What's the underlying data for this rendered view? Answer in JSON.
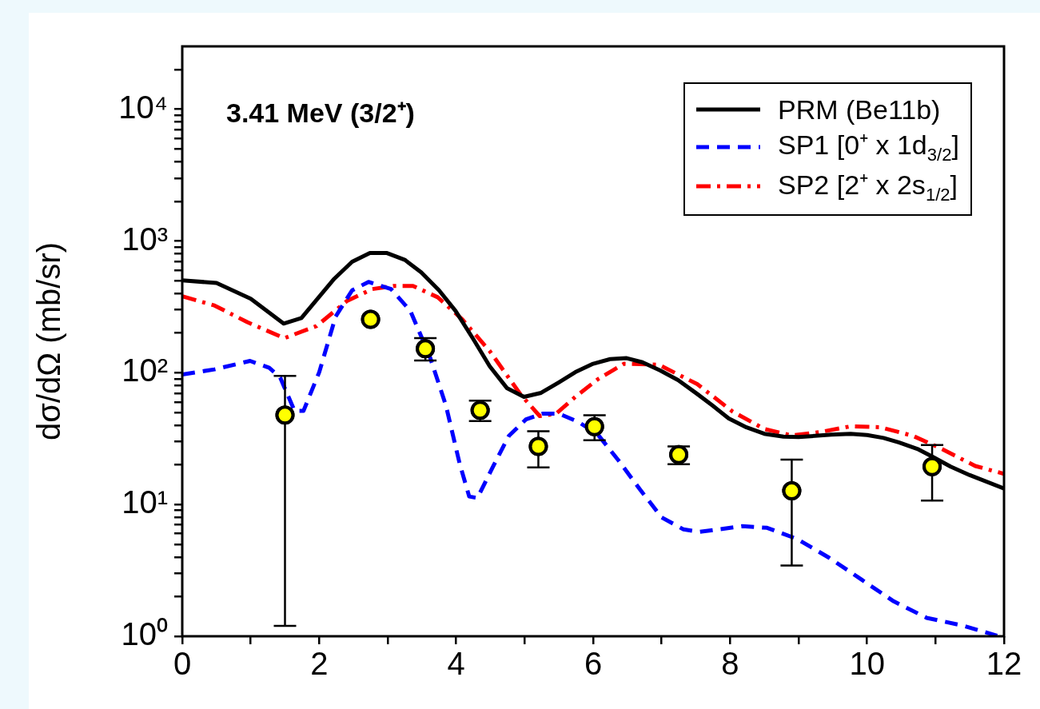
{
  "chart_data": {
    "type": "line",
    "title": "3.41 MeV (3/2⁺)",
    "ylabel": "dσ/dΩ (mb/sr)",
    "log": "y",
    "grid": false,
    "legend": "top right",
    "xlim": [
      0,
      12
    ],
    "xticks": [
      0,
      {
        "value": 1,
        "label": null
      },
      2,
      {
        "value": 3,
        "label": null
      },
      4,
      {
        "value": 5,
        "label": null
      },
      6,
      {
        "value": 7,
        "label": null
      },
      8,
      {
        "value": 9,
        "label": null
      },
      10,
      {
        "value": 11,
        "label": null
      },
      12
    ],
    "ylim": [
      1,
      30000
    ],
    "yticks": [
      {
        "value": 1,
        "label": "10⁰"
      },
      {
        "value": 2,
        "label": null
      },
      {
        "value": 3,
        "label": null
      },
      {
        "value": 4,
        "label": null
      },
      {
        "value": 5,
        "label": null
      },
      {
        "value": 6,
        "label": null
      },
      {
        "value": 7,
        "label": null
      },
      {
        "value": 8,
        "label": null
      },
      {
        "value": 9,
        "label": null
      },
      {
        "value": 10,
        "label": "10¹"
      },
      {
        "value": 20,
        "label": null
      },
      {
        "value": 30,
        "label": null
      },
      {
        "value": 40,
        "label": null
      },
      {
        "value": 50,
        "label": null
      },
      {
        "value": 60,
        "label": null
      },
      {
        "value": 70,
        "label": null
      },
      {
        "value": 80,
        "label": null
      },
      {
        "value": 90,
        "label": null
      },
      {
        "value": 100,
        "label": "10²"
      },
      {
        "value": 200,
        "label": null
      },
      {
        "value": 300,
        "label": null
      },
      {
        "value": 400,
        "label": null
      },
      {
        "value": 500,
        "label": null
      },
      {
        "value": 600,
        "label": null
      },
      {
        "value": 700,
        "label": null
      },
      {
        "value": 800,
        "label": null
      },
      {
        "value": 900,
        "label": null
      },
      {
        "value": 1000,
        "label": "10³"
      },
      {
        "value": 2000,
        "label": null
      },
      {
        "value": 3000,
        "label": null
      },
      {
        "value": 4000,
        "label": null
      },
      {
        "value": 5000,
        "label": null
      },
      {
        "value": 6000,
        "label": null
      },
      {
        "value": 7000,
        "label": null
      },
      {
        "value": 8000,
        "label": null
      },
      {
        "value": 9000,
        "label": null
      },
      {
        "value": 10000,
        "label": "10⁴"
      },
      {
        "value": 20000,
        "label": null
      }
    ],
    "series": [
      {
        "name": "PRM (Be11b)",
        "color": "#000000",
        "line_style": "solid",
        "x": [
          0,
          0.5,
          1.0,
          1.48,
          1.74,
          2.22,
          2.48,
          2.74,
          2.99,
          3.25,
          3.49,
          3.75,
          3.99,
          4.25,
          4.49,
          4.74,
          4.99,
          5.24,
          5.5,
          5.74,
          6.0,
          6.25,
          6.49,
          6.72,
          6.98,
          7.24,
          7.52,
          7.75,
          7.98,
          8.24,
          8.5,
          8.78,
          9.0,
          9.48,
          9.76,
          10.0,
          10.24,
          10.47,
          10.75,
          10.98,
          11.22,
          11.5,
          12
        ],
        "values": [
          503,
          480,
          364,
          236,
          260,
          517,
          695,
          810,
          810,
          719,
          578,
          422,
          295,
          180,
          112,
          76.6,
          65.6,
          70.4,
          84.6,
          101,
          117,
          127,
          129,
          120,
          104,
          88,
          69,
          56,
          45,
          38.5,
          34.4,
          32.7,
          32.5,
          33.9,
          34.4,
          33.7,
          32,
          29.5,
          26.2,
          22.7,
          19.4,
          16.7,
          13.2
        ]
      },
      {
        "name": "SP1 [0⁺ x 1d$_{3/2}$]",
        "color": "#0000ff",
        "line_style": "dashed",
        "x": [
          0,
          0.47,
          0.99,
          1.27,
          1.43,
          1.64,
          1.77,
          2.0,
          2.24,
          2.48,
          2.72,
          3.05,
          3.33,
          3.61,
          3.85,
          4.05,
          4.19,
          4.31,
          4.54,
          4.77,
          5.02,
          5.26,
          5.5,
          5.78,
          6.07,
          6.37,
          6.69,
          7.0,
          7.32,
          7.55,
          8.18,
          8.54,
          8.98,
          9.45,
          9.92,
          10.39,
          10.87,
          11.41,
          11.9
        ],
        "values": [
          97,
          106,
          123,
          109,
          92,
          51.3,
          51.3,
          101,
          267,
          422,
          489,
          431,
          295,
          135,
          56.5,
          20.5,
          11.5,
          11.2,
          19.5,
          33.2,
          44.3,
          48.9,
          48.9,
          42.5,
          33.9,
          21.6,
          12.9,
          7.98,
          6.47,
          6.2,
          6.84,
          6.65,
          5.47,
          3.93,
          2.69,
          1.84,
          1.38,
          1.2,
          1.01
        ]
      },
      {
        "name": "SP2 [2⁺ x 2s$_{1/2}$]",
        "color": "#ff0000",
        "line_style": "dashdot",
        "x": [
          0,
          0.47,
          0.95,
          1.49,
          1.96,
          2.4,
          2.77,
          3.08,
          3.37,
          3.73,
          4.09,
          4.49,
          4.94,
          5.22,
          5.46,
          5.74,
          6.07,
          6.45,
          6.96,
          7.52,
          8.03,
          8.5,
          8.9,
          9.33,
          9.76,
          10.19,
          10.67,
          11.1,
          11.58,
          12
        ],
        "values": [
          380,
          324,
          242,
          183,
          226,
          349,
          431,
          456,
          456,
          374,
          254,
          146,
          68.4,
          46.9,
          48.9,
          65.6,
          89.4,
          117,
          115,
          82,
          51,
          37.4,
          33.4,
          35.6,
          39.2,
          38.6,
          33.2,
          26.3,
          19.6,
          17.1
        ]
      },
      {
        "type": "scatter",
        "color": "#ffff00",
        "marker": "circle",
        "x": [
          1.5,
          2.75,
          3.55,
          4.35,
          5.2,
          6.02,
          7.25,
          8.9,
          10.95
        ],
        "values": [
          47.7,
          254,
          152,
          51.9,
          27.6,
          39,
          23.9,
          12.7,
          19.4
        ],
        "errors": [
          [
            1.2,
            94.6
          ],
          null,
          [
            124,
            183
          ],
          [
            43,
            61.4
          ],
          [
            19.1,
            36
          ],
          [
            30.8,
            47.5
          ],
          [
            20.2,
            27.6
          ],
          [
            3.44,
            21.9
          ],
          [
            10.7,
            28.3
          ]
        ]
      }
    ]
  }
}
